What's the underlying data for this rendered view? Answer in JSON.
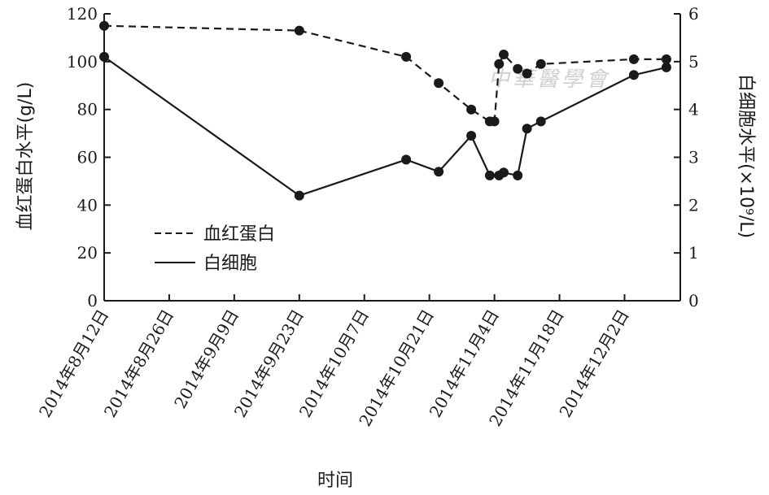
{
  "watermark": "中華醫學會",
  "chart_data": {
    "type": "line",
    "xlabel": "时间",
    "ylabel_left": "血红蛋白水平(g/L)",
    "ylabel_right": "白细胞水平(×10⁹/L)",
    "x_range": [
      "2014-08-12",
      "2014-12-14"
    ],
    "x_ticks": [
      {
        "date": "2014-08-12",
        "label": "2014年8月12日"
      },
      {
        "date": "2014-08-26",
        "label": "2014年8月26日"
      },
      {
        "date": "2014-09-09",
        "label": "2014年9月9日"
      },
      {
        "date": "2014-09-23",
        "label": "2014年9月23日"
      },
      {
        "date": "2014-10-07",
        "label": "2014年10月7日"
      },
      {
        "date": "2014-10-21",
        "label": "2014年10月21日"
      },
      {
        "date": "2014-11-04",
        "label": "2014年11月4日"
      },
      {
        "date": "2014-11-18",
        "label": "2014年11月18日"
      },
      {
        "date": "2014-12-02",
        "label": "2014年12月2日"
      }
    ],
    "y_left": {
      "range": [
        0,
        120
      ],
      "ticks": [
        0,
        20,
        40,
        60,
        80,
        100,
        120
      ]
    },
    "y_right": {
      "range": [
        0,
        6
      ],
      "ticks": [
        0,
        1,
        2,
        3,
        4,
        5,
        6
      ]
    },
    "grid": false,
    "legend_position": "lower-left",
    "series": [
      {
        "name": "血红蛋白",
        "axis": "left",
        "style": "dashed",
        "color": "#1a1a1a",
        "points": [
          {
            "x": "2014-08-12",
            "y": 115
          },
          {
            "x": "2014-09-23",
            "y": 113
          },
          {
            "x": "2014-10-16",
            "y": 102
          },
          {
            "x": "2014-10-23",
            "y": 91
          },
          {
            "x": "2014-10-30",
            "y": 80
          },
          {
            "x": "2014-11-03",
            "y": 75
          },
          {
            "x": "2014-11-04",
            "y": 75
          },
          {
            "x": "2014-11-05",
            "y": 99
          },
          {
            "x": "2014-11-06",
            "y": 103
          },
          {
            "x": "2014-11-09",
            "y": 97
          },
          {
            "x": "2014-11-11",
            "y": 95
          },
          {
            "x": "2014-11-14",
            "y": 99
          },
          {
            "x": "2014-12-04",
            "y": 101
          },
          {
            "x": "2014-12-11",
            "y": 101
          }
        ]
      },
      {
        "name": "白细胞",
        "axis": "right",
        "style": "solid",
        "color": "#1a1a1a",
        "points": [
          {
            "x": "2014-08-12",
            "y": 5.1
          },
          {
            "x": "2014-09-23",
            "y": 2.2
          },
          {
            "x": "2014-10-16",
            "y": 2.95
          },
          {
            "x": "2014-10-23",
            "y": 2.7
          },
          {
            "x": "2014-10-30",
            "y": 3.45
          },
          {
            "x": "2014-11-03",
            "y": 2.62
          },
          {
            "x": "2014-11-05",
            "y": 2.62
          },
          {
            "x": "2014-11-06",
            "y": 2.68
          },
          {
            "x": "2014-11-09",
            "y": 2.62
          },
          {
            "x": "2014-11-11",
            "y": 3.6
          },
          {
            "x": "2014-11-14",
            "y": 3.75
          },
          {
            "x": "2014-12-04",
            "y": 4.72
          },
          {
            "x": "2014-12-11",
            "y": 4.88
          }
        ]
      }
    ]
  }
}
